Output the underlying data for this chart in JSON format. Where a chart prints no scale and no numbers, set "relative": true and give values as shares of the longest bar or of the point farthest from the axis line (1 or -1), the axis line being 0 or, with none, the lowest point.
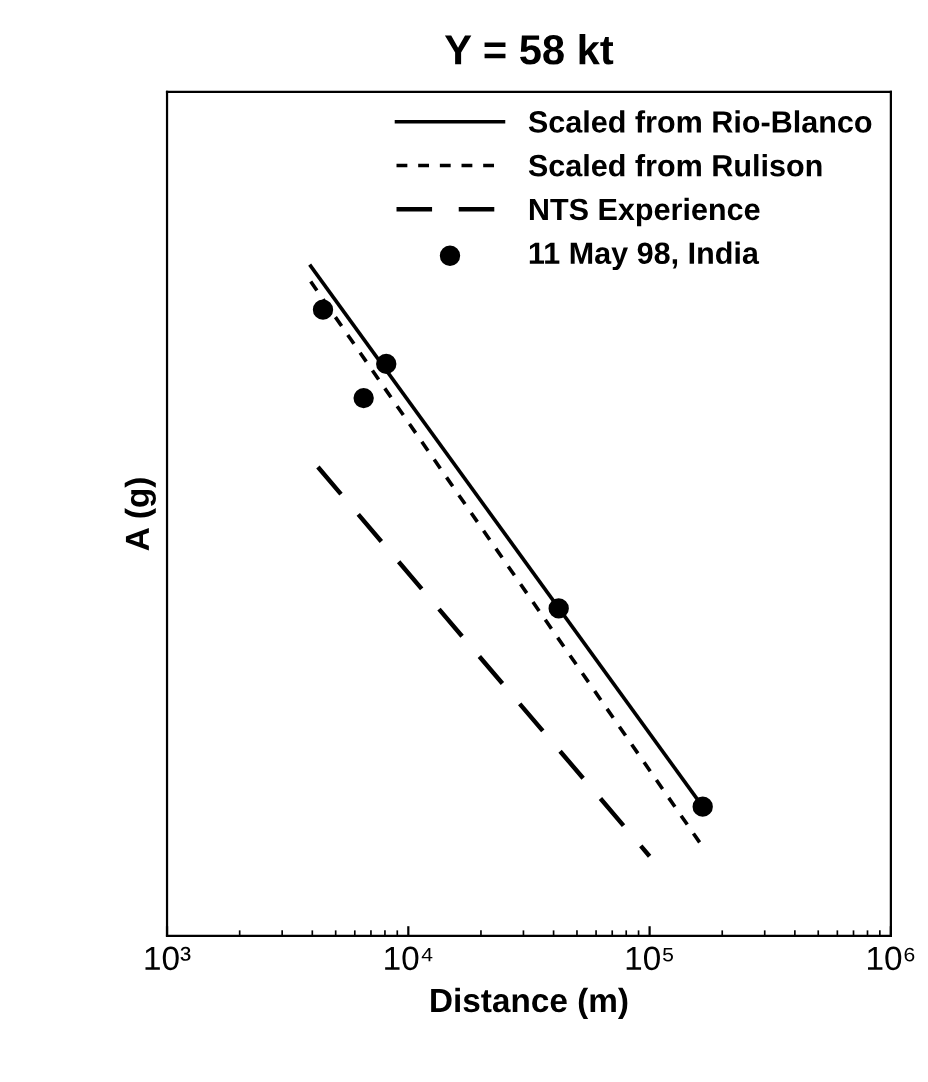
{
  "chart_data": {
    "type": "line",
    "title": "Y = 58 kt",
    "xlabel": "Distance (m)",
    "ylabel": "A (g)",
    "log": "x",
    "relative": true,
    "xlim": [
      1000,
      1000000
    ],
    "xticks": [
      {
        "value": 1000,
        "label": "10³"
      },
      {
        "value": 10000,
        "label": "10⁴"
      },
      {
        "value": 100000,
        "label": "10⁵"
      },
      {
        "value": 1000000,
        "label": "10⁶"
      }
    ],
    "series": [
      {
        "name": "Scaled from Rio-Blanco",
        "color": "#000000",
        "line_style": "solid",
        "x": [
          3940,
          166000
        ],
        "values": [
          1,
          0.193
        ]
      },
      {
        "name": "Scaled from Rulison",
        "color": "#000000",
        "line_style": "dotted",
        "x": [
          3940,
          166000
        ],
        "values": [
          0.977,
          0.133
        ]
      },
      {
        "name": "NTS Experience",
        "color": "#000000",
        "line_style": "dashed",
        "x": [
          4220,
          100000
        ],
        "values": [
          0.7,
          0.119
        ]
      },
      {
        "name": "11 May 98, India",
        "type": "scatter",
        "color": "#000000",
        "marker": "circle",
        "x": [
          4430,
          8100,
          6530,
          42000,
          166000
        ],
        "values": [
          0.935,
          0.854,
          0.803,
          0.489,
          0.193
        ]
      }
    ],
    "grid": false,
    "legend": "top right"
  }
}
